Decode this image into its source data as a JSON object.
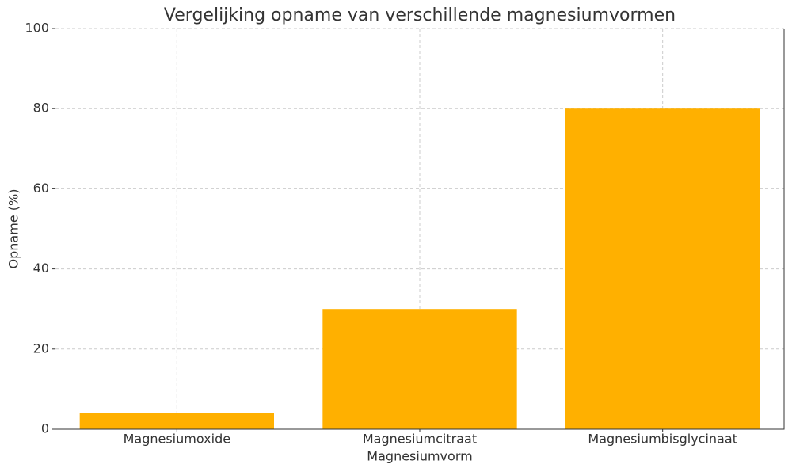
{
  "chart_data": {
    "type": "bar",
    "title": "Vergelijking opname van verschillende magnesiumvormen",
    "xlabel": "Magnesiumvorm",
    "ylabel": "Opname (%)",
    "categories": [
      "Magnesiumoxide",
      "Magnesiumcitraat",
      "Magnesiumbisglycinaat"
    ],
    "values": [
      4,
      30,
      80
    ],
    "color": "#ffb000",
    "ylim": [
      0,
      100
    ],
    "yticks": [
      0,
      20,
      40,
      60,
      80,
      100
    ],
    "grid": true
  }
}
